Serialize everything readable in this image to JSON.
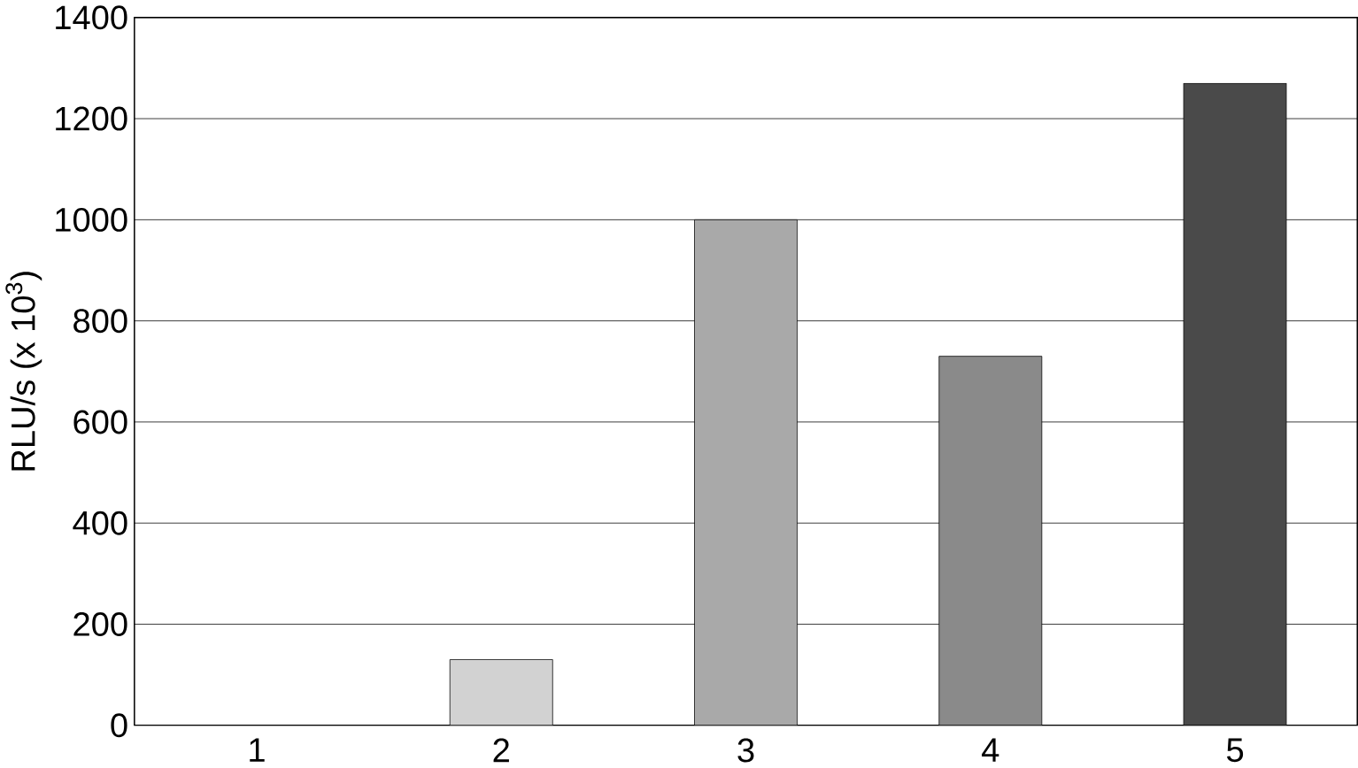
{
  "chart_data": {
    "type": "bar",
    "ylabel": "RLU/s  (x 10$^{3}$)",
    "categories": [
      "1",
      "2",
      "3",
      "4",
      "5"
    ],
    "values": [
      0,
      130,
      1000,
      730,
      1270
    ],
    "colors": [
      "#8a8a8a",
      "#d2d2d2",
      "#a9a9a9",
      "#8a8a8a",
      "#4a4a4a"
    ],
    "ylim": [
      0,
      1400
    ],
    "yticks": [
      0,
      200,
      400,
      600,
      800,
      1000,
      1200,
      1400
    ],
    "grid": "y"
  }
}
